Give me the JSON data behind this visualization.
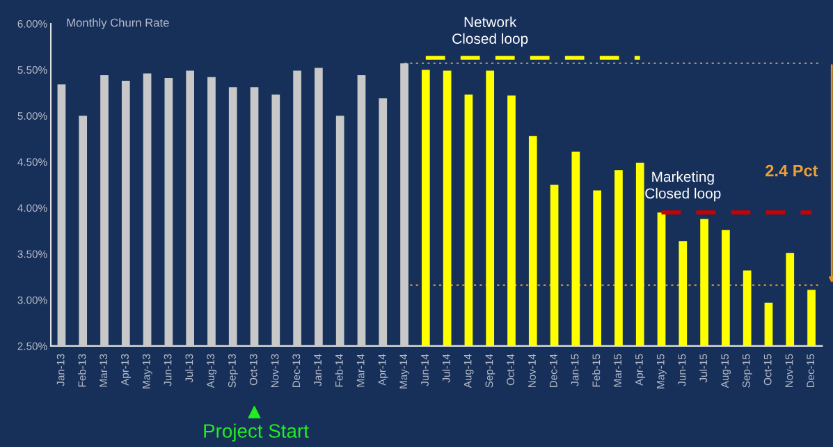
{
  "chart_data": {
    "type": "bar",
    "ylabel": "Monthly Churn Rate",
    "categories": [
      "Jan-13",
      "Feb-13",
      "Mar-13",
      "Apr-13",
      "May-13",
      "Jun-13",
      "Jul-13",
      "Aug-13",
      "Sep-13",
      "Oct-13",
      "Nov-13",
      "Dec-13",
      "Jan-14",
      "Feb-14",
      "Mar-14",
      "Apr-14",
      "May-14",
      "Jun-14",
      "Jul-14",
      "Aug-14",
      "Sep-14",
      "Oct-14",
      "Nov-14",
      "Dec-14",
      "Jan-15",
      "Feb-15",
      "Mar-15",
      "Apr-15",
      "May-15",
      "Jun-15",
      "Jul-15",
      "Aug-15",
      "Sep-15",
      "Oct-15",
      "Nov-15",
      "Dec-15"
    ],
    "series": [
      {
        "values": [
          5.34,
          5.0,
          5.44,
          5.38,
          5.46,
          5.41,
          5.49,
          5.42,
          5.31,
          5.31,
          5.23,
          5.49,
          5.52,
          5.0,
          5.44,
          5.19,
          5.57,
          5.5,
          5.49,
          5.23,
          5.49,
          5.22,
          4.78,
          4.25,
          4.61,
          4.19,
          4.41,
          4.49,
          3.95,
          3.64,
          3.88,
          3.76,
          3.32,
          2.97,
          3.51,
          3.11
        ],
        "colors": [
          "#c8c8c8",
          "#c8c8c8",
          "#c8c8c8",
          "#c8c8c8",
          "#c8c8c8",
          "#c8c8c8",
          "#c8c8c8",
          "#c8c8c8",
          "#c8c8c8",
          "#c8c8c8",
          "#c8c8c8",
          "#c8c8c8",
          "#c8c8c8",
          "#c8c8c8",
          "#c8c8c8",
          "#c8c8c8",
          "#c8c8c8",
          "#ffff00",
          "#ffff00",
          "#ffff00",
          "#ffff00",
          "#ffff00",
          "#ffff00",
          "#ffff00",
          "#ffff00",
          "#ffff00",
          "#ffff00",
          "#ffff00",
          "#ffff00",
          "#ffff00",
          "#ffff00",
          "#ffff00",
          "#ffff00",
          "#ffff00",
          "#ffff00",
          "#ffff00"
        ]
      },
      {
        "type": "line",
        "color": "#ffff00",
        "line_style": "dashed",
        "values": [
          null,
          null,
          null,
          null,
          null,
          null,
          null,
          null,
          null,
          null,
          null,
          null,
          null,
          null,
          null,
          null,
          null,
          5.63,
          5.63,
          5.63,
          5.63,
          5.63,
          5.63,
          5.63,
          5.63,
          5.63,
          5.63,
          5.63,
          null,
          null,
          null,
          null,
          null,
          null,
          null,
          null
        ]
      },
      {
        "type": "line",
        "color": "#cc0000",
        "line_style": "dashed",
        "values": [
          null,
          null,
          null,
          null,
          null,
          null,
          null,
          null,
          null,
          null,
          null,
          null,
          null,
          null,
          null,
          null,
          null,
          null,
          null,
          null,
          null,
          null,
          null,
          null,
          null,
          null,
          null,
          null,
          3.95,
          3.95,
          3.95,
          3.95,
          3.95,
          3.95,
          3.95,
          3.95
        ]
      }
    ],
    "ylim": [
      2.5,
      6.0
    ],
    "yticks": [
      {
        "value": 2.5,
        "label": "2.50%"
      },
      {
        "value": 3.0,
        "label": "3.00%"
      },
      {
        "value": 3.5,
        "label": "3.50%"
      },
      {
        "value": 4.0,
        "label": "4.00%"
      },
      {
        "value": 4.5,
        "label": "4.50%"
      },
      {
        "value": 5.0,
        "label": "5.00%"
      },
      {
        "value": 5.5,
        "label": "5.50%"
      },
      {
        "value": 6.0,
        "label": "6.00%"
      }
    ],
    "ref_lines": [
      {
        "axis": "y",
        "value": 5.57,
        "color": "#a09070",
        "line_style": "dotted"
      },
      {
        "axis": "y",
        "value": 3.16,
        "color": "#e0a020",
        "line_style": "dotted"
      }
    ],
    "annotations": [
      {
        "text": "Network\nClosed loop",
        "x": "Sep-14",
        "y": 5.63
      },
      {
        "text": "Marketing\nClosed loop",
        "x": "Jun-15",
        "y": 3.95
      },
      "2.4 Pct",
      "Project Start"
    ],
    "grid": false,
    "legend": false,
    "marker": "none"
  }
}
